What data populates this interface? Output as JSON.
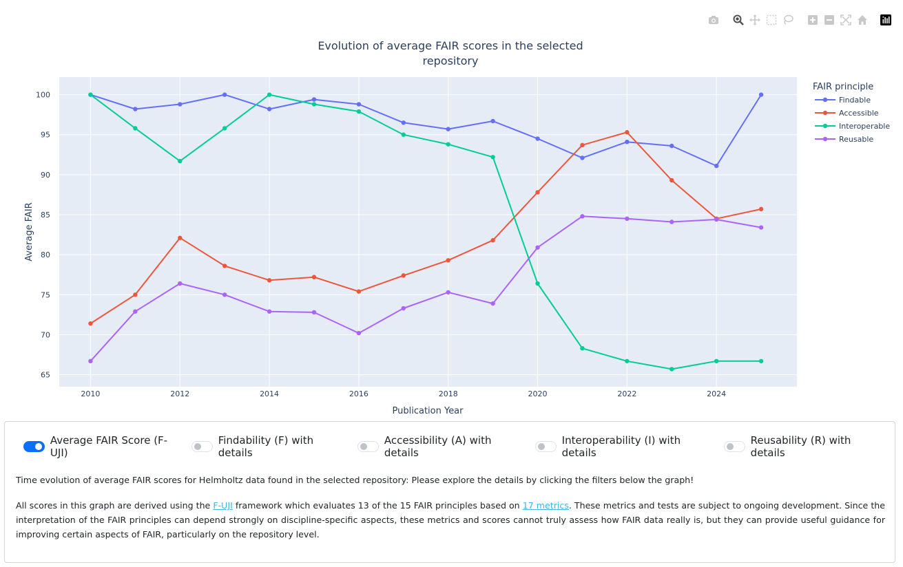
{
  "chart_data": {
    "type": "line",
    "title": "Evolution of average FAIR scores in the selected repository",
    "title_lines": [
      "Evolution of average FAIR scores in the selected",
      "repository"
    ],
    "xlabel": "Publication Year",
    "ylabel": "Average FAIR",
    "xlim": [
      2009.3,
      2025.8
    ],
    "ylim": [
      63.5,
      102.2
    ],
    "x_ticks": [
      2010,
      2012,
      2014,
      2016,
      2018,
      2020,
      2022,
      2024
    ],
    "y_ticks": [
      65,
      70,
      75,
      80,
      85,
      90,
      95,
      100
    ],
    "x_tick_labels": [
      "2010",
      "2012",
      "2014",
      "2016",
      "2018",
      "2020",
      "2022",
      "2024"
    ],
    "y_tick_labels": [
      "65",
      "70",
      "75",
      "80",
      "85",
      "90",
      "95",
      "100"
    ],
    "grid": true,
    "legend_title": "FAIR principle",
    "legend_position": "top-right",
    "x": [
      2010,
      2011,
      2012,
      2013,
      2014,
      2015,
      2016,
      2017,
      2018,
      2019,
      2020,
      2021,
      2022,
      2023,
      2024,
      2025
    ],
    "series": [
      {
        "name": "Findable",
        "color": "#636efa",
        "values": [
          100,
          98.2,
          98.8,
          100,
          98.2,
          99.4,
          98.8,
          96.5,
          95.7,
          96.7,
          94.5,
          92.1,
          94.1,
          93.6,
          91.1,
          100
        ]
      },
      {
        "name": "Accessible",
        "color": "#ef553b",
        "values": [
          71.4,
          75,
          82.1,
          78.6,
          76.8,
          77.2,
          75.4,
          77.4,
          79.3,
          81.8,
          87.8,
          93.7,
          95.3,
          89.3,
          84.5,
          85.7
        ]
      },
      {
        "name": "Interoperable",
        "color": "#00cc96",
        "values": [
          100,
          95.8,
          91.7,
          95.8,
          100,
          98.8,
          97.9,
          95,
          93.8,
          92.2,
          76.4,
          68.3,
          66.7,
          65.7,
          66.7,
          66.7
        ]
      },
      {
        "name": "Reusable",
        "color": "#ab63fa",
        "values": [
          66.7,
          72.9,
          76.4,
          75,
          72.9,
          72.8,
          70.2,
          73.3,
          75.3,
          73.9,
          80.9,
          84.8,
          84.5,
          84.1,
          84.4,
          83.4
        ]
      }
    ]
  },
  "plot_colors": {
    "background": "#e5ecf6",
    "grid": "#ffffff",
    "text": "#2a3f5f"
  },
  "modebar": {
    "icons": [
      "camera-icon",
      "zoom-icon",
      "pan-icon",
      "box-select-icon",
      "lasso-icon",
      "zoom-in-icon",
      "zoom-out-icon",
      "autoscale-icon",
      "reset-axes-icon",
      "plotly-logo-icon"
    ]
  },
  "toggles": [
    {
      "label": "Average FAIR Score (F-UJI)",
      "on": true
    },
    {
      "label": "Findability (F) with details",
      "on": false
    },
    {
      "label": "Accessibility (A) with details",
      "on": false
    },
    {
      "label": "Interoperability (I) with details",
      "on": false
    },
    {
      "label": "Reusability (R) with details",
      "on": false
    }
  ],
  "description": {
    "p1": "Time evolution of average FAIR scores for Helmholtz data found in the selected repository: Please explore the details by clicking the filters below the graph!",
    "p2_a": "All scores in this graph are derived using the ",
    "p2_link1": "F-UJI",
    "p2_b": " framework which evaluates 13 of the 15 FAIR principles based on ",
    "p2_link2": "17 metrics",
    "p2_c": ". These metrics and tests are subject to ongoing development. Since the interpretation of the FAIR principles can depend strongly on discipline-specific aspects, these metrics and scores cannot truly assess how FAIR data really is, but they can provide useful guidance for improving certain aspects of FAIR, particularly on the repository level."
  }
}
